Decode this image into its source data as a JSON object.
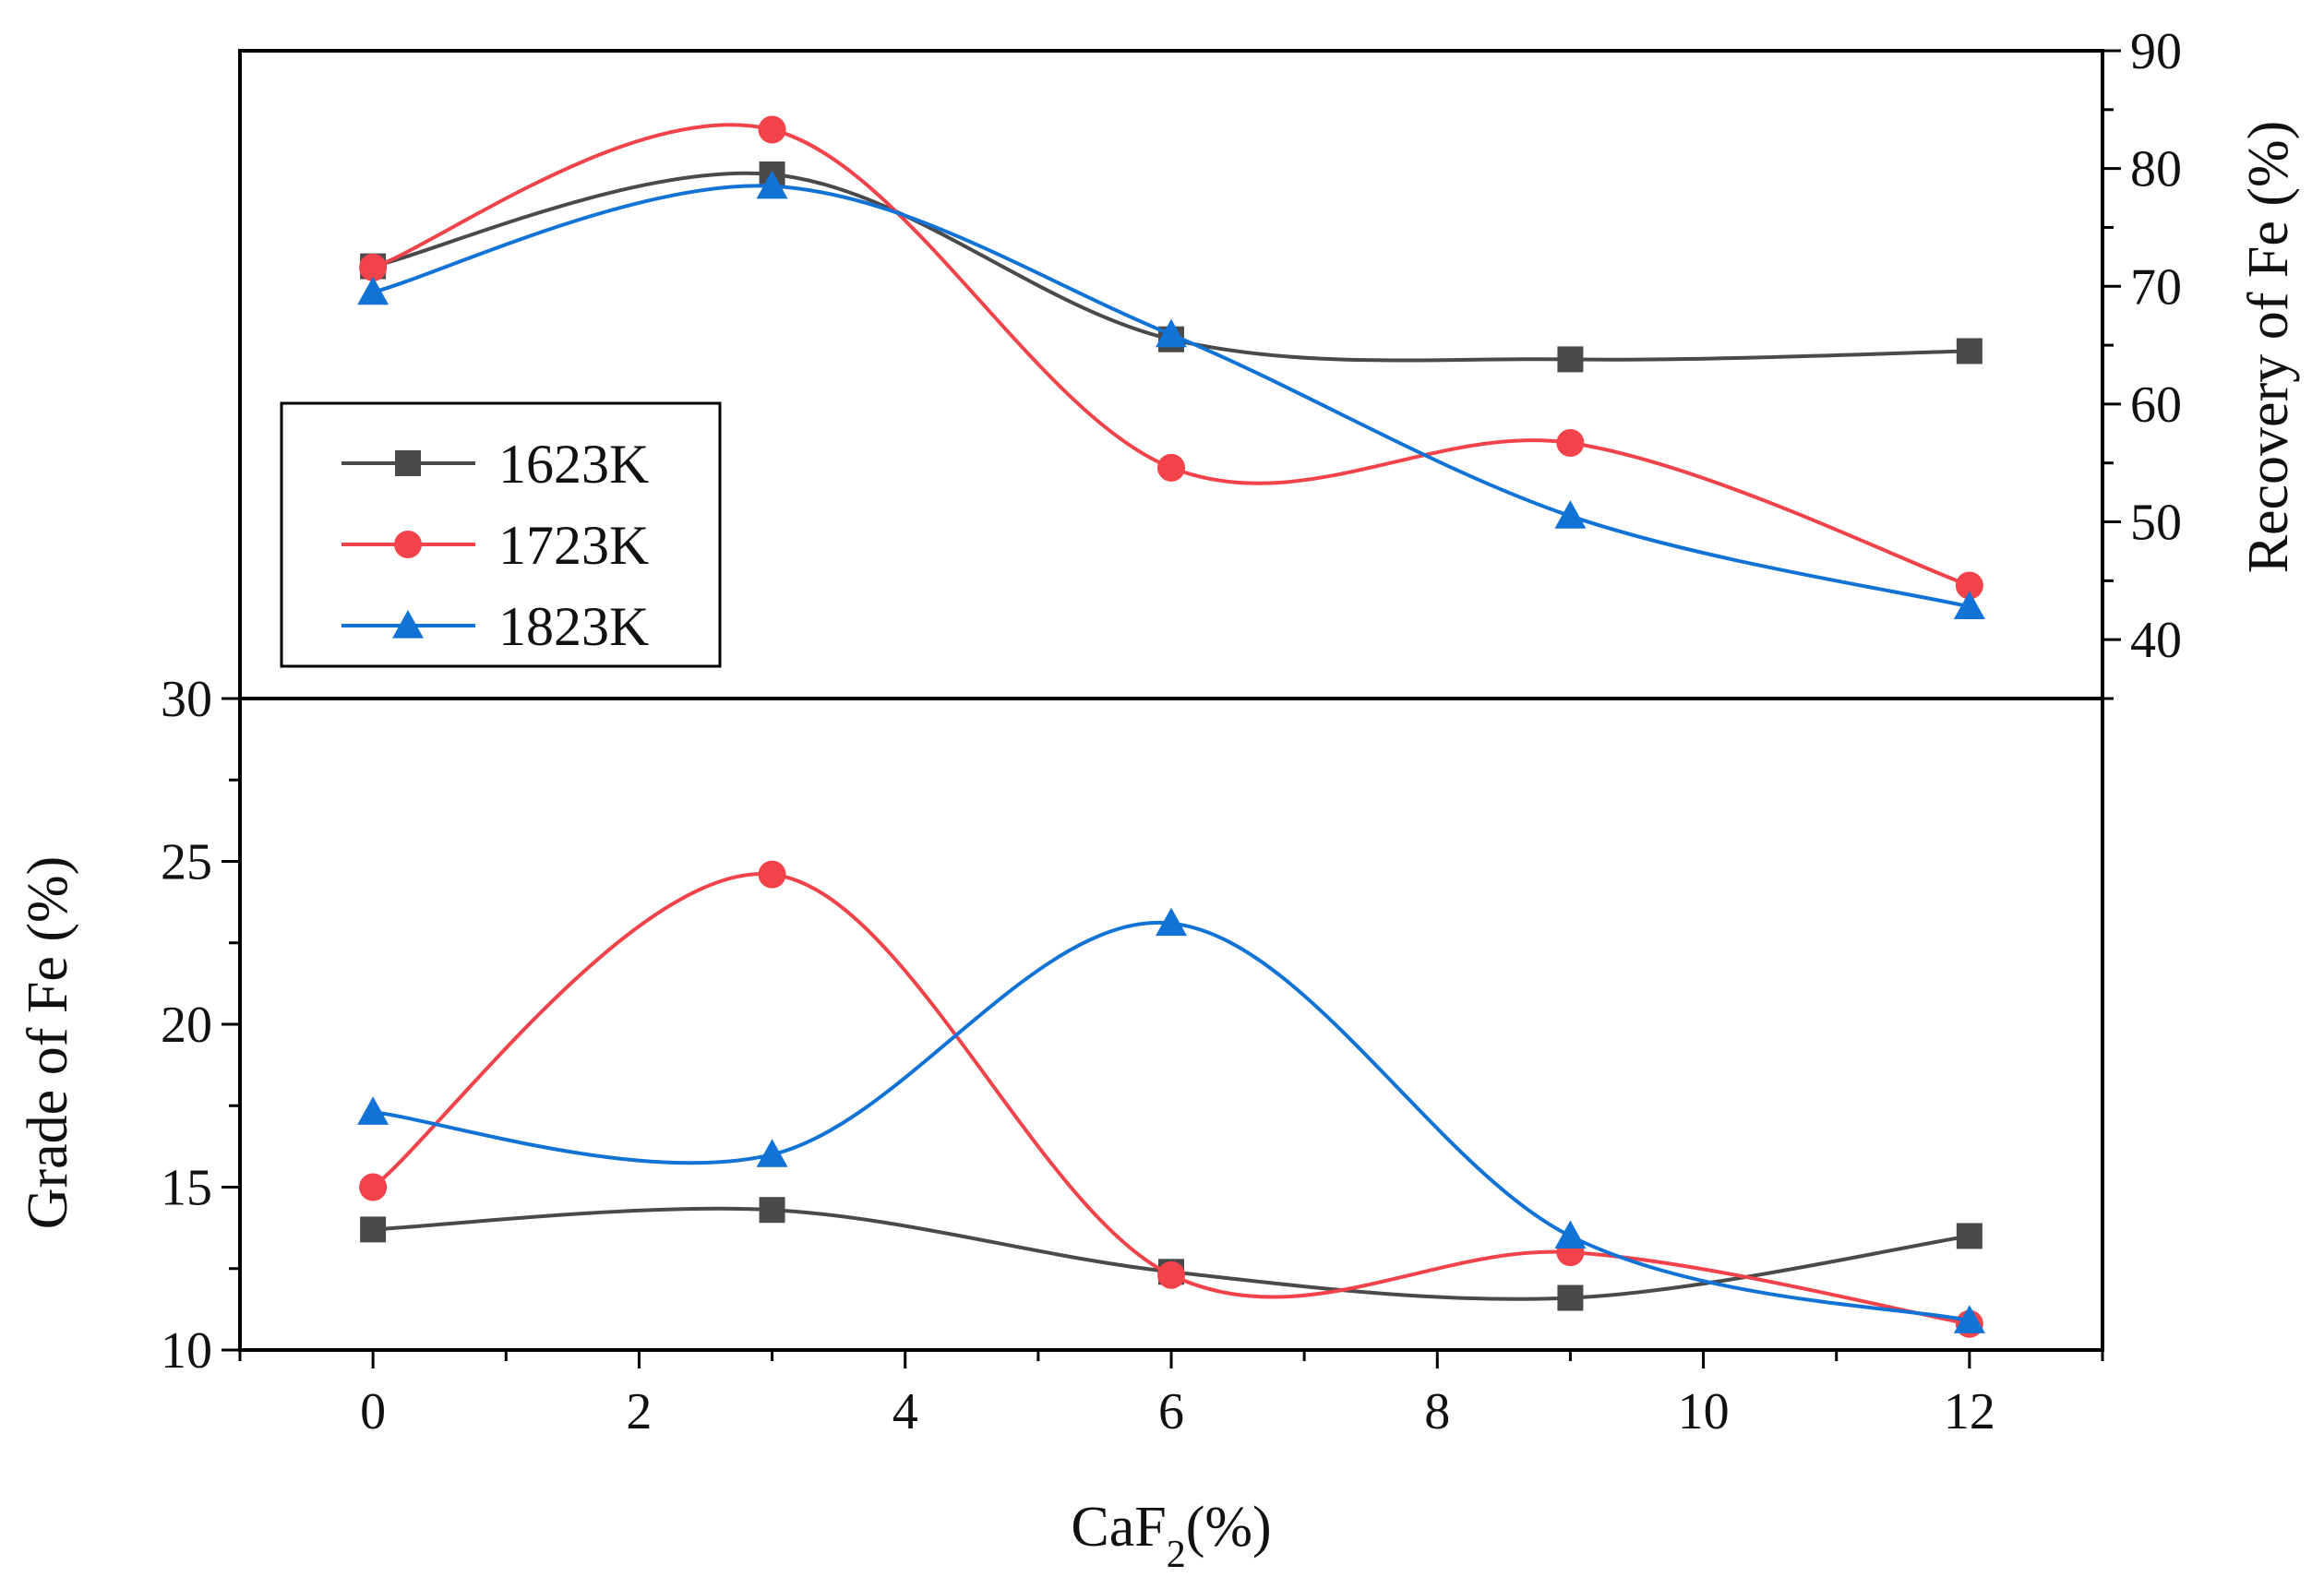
{
  "chart_data": {
    "type": "line",
    "x_axis": {
      "label_prefix": "CaF",
      "label_subscript": "2",
      "label_suffix": "(%)",
      "ticks": [
        0,
        2,
        4,
        6,
        8,
        10,
        12
      ],
      "range": [
        -1,
        13
      ]
    },
    "panels": [
      {
        "id": "recovery",
        "position": "top",
        "ylabel": "Recovery of Fe (%)",
        "axis_side": "right",
        "ylim": [
          35,
          90
        ],
        "ticks": [
          40,
          50,
          60,
          70,
          80,
          90
        ],
        "x": [
          0,
          3,
          6,
          9,
          12
        ],
        "series": [
          {
            "name": "1623K",
            "color": "#4a4a4a",
            "marker": "square",
            "values": [
              71.7,
              79.5,
              65.5,
              63.8,
              64.5
            ]
          },
          {
            "name": "1723K",
            "color": "#f2424a",
            "marker": "circle",
            "values": [
              71.6,
              83.3,
              54.6,
              56.7,
              44.6
            ]
          },
          {
            "name": "1823K",
            "color": "#1273d6",
            "marker": "triangle",
            "values": [
              69.5,
              78.5,
              65.9,
              50.5,
              42.8
            ]
          }
        ]
      },
      {
        "id": "grade",
        "position": "bottom",
        "ylabel": "Grade of Fe (%)",
        "axis_side": "left",
        "ylim": [
          10,
          30
        ],
        "ticks": [
          10,
          15,
          20,
          25,
          30
        ],
        "x": [
          0,
          3,
          6,
          9,
          12
        ],
        "series": [
          {
            "name": "1623K",
            "color": "#4a4a4a",
            "marker": "square",
            "values": [
              13.7,
              14.3,
              12.4,
              11.6,
              13.5
            ]
          },
          {
            "name": "1723K",
            "color": "#f2424a",
            "marker": "circle",
            "values": [
              15.0,
              24.6,
              12.3,
              13.0,
              10.8
            ]
          },
          {
            "name": "1823K",
            "color": "#1273d6",
            "marker": "triangle",
            "values": [
              17.3,
              16.0,
              23.1,
              13.5,
              10.9
            ]
          }
        ]
      }
    ],
    "legend": {
      "placement": "top-left",
      "entries": [
        "1623K",
        "1723K",
        "1823K"
      ]
    }
  }
}
